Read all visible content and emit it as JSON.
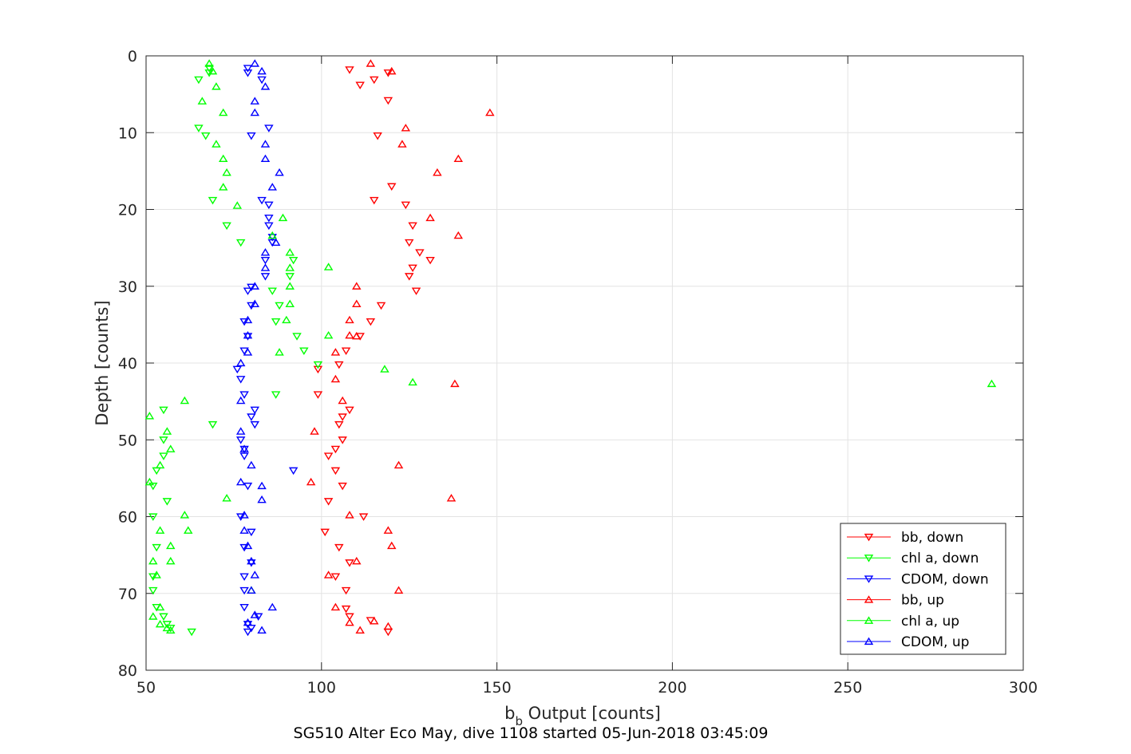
{
  "chart_data": {
    "type": "scatter",
    "title": "",
    "caption": "SG510 Alter Eco May, dive 1108 started 05-Jun-2018 03:45:09",
    "xlabel_main": "b",
    "xlabel_sub": "b",
    "xlabel_rest": " Output [counts]",
    "ylabel": "Depth [counts]",
    "xlim": [
      50,
      300
    ],
    "ylim": [
      0,
      80
    ],
    "y_reversed": true,
    "xticks": [
      50,
      100,
      150,
      200,
      250,
      300
    ],
    "yticks": [
      0,
      10,
      20,
      30,
      40,
      50,
      60,
      70,
      80
    ],
    "grid": true,
    "legend_position": "bottom-right",
    "series": [
      {
        "name": "bb, down",
        "color": "#ff0000",
        "marker": "down",
        "points": [
          [
            108,
            1.8
          ],
          [
            119,
            2.2
          ],
          [
            115,
            3.1
          ],
          [
            111,
            3.8
          ],
          [
            119,
            5.8
          ],
          [
            116,
            10.4
          ],
          [
            115,
            18.8
          ],
          [
            120,
            17
          ],
          [
            124,
            19.4
          ],
          [
            126,
            22.1
          ],
          [
            125,
            24.3
          ],
          [
            128,
            25.6
          ],
          [
            131,
            26.6
          ],
          [
            126,
            27.6
          ],
          [
            125,
            28.7
          ],
          [
            127,
            30.6
          ],
          [
            117,
            32.5
          ],
          [
            114,
            34.6
          ],
          [
            111,
            36.5
          ],
          [
            107,
            38.4
          ],
          [
            105,
            40.2
          ],
          [
            99,
            40.8
          ],
          [
            99,
            44.1
          ],
          [
            108,
            46.1
          ],
          [
            106,
            47
          ],
          [
            105,
            48
          ],
          [
            106,
            50
          ],
          [
            104,
            51.2
          ],
          [
            102,
            52.1
          ],
          [
            104,
            54
          ],
          [
            106,
            56
          ],
          [
            102,
            58
          ],
          [
            112,
            60
          ],
          [
            101,
            62
          ],
          [
            105,
            64
          ],
          [
            108,
            66
          ],
          [
            104,
            67.8
          ],
          [
            107,
            69.6
          ],
          [
            107,
            72
          ],
          [
            108,
            73
          ],
          [
            114,
            73.5
          ],
          [
            119,
            75
          ]
        ]
      },
      {
        "name": "chl a, down",
        "color": "#00ff00",
        "marker": "down",
        "points": [
          [
            68,
            1.6
          ],
          [
            68,
            2.2
          ],
          [
            65,
            3.1
          ],
          [
            65,
            9.4
          ],
          [
            67,
            10.4
          ],
          [
            69,
            18.8
          ],
          [
            73,
            22.1
          ],
          [
            77,
            24.3
          ],
          [
            92,
            26.6
          ],
          [
            91,
            28.7
          ],
          [
            86,
            30.6
          ],
          [
            88,
            32.5
          ],
          [
            87,
            34.6
          ],
          [
            93,
            36.5
          ],
          [
            95,
            38.4
          ],
          [
            99,
            40.2
          ],
          [
            87,
            44.1
          ],
          [
            55,
            46.1
          ],
          [
            69,
            48
          ],
          [
            55,
            50
          ],
          [
            55,
            52.1
          ],
          [
            53,
            54
          ],
          [
            52,
            56
          ],
          [
            56,
            58
          ],
          [
            52,
            60
          ],
          [
            53,
            64
          ],
          [
            52,
            67.8
          ],
          [
            52,
            69.6
          ],
          [
            53,
            71.8
          ],
          [
            55,
            73
          ],
          [
            56,
            74
          ],
          [
            57,
            74.5
          ],
          [
            63,
            75
          ]
        ]
      },
      {
        "name": "CDOM, down",
        "color": "#0000ff",
        "marker": "down",
        "points": [
          [
            79,
            1.6
          ],
          [
            79,
            2.2
          ],
          [
            83,
            3.1
          ],
          [
            85,
            9.4
          ],
          [
            80,
            10.4
          ],
          [
            83,
            18.8
          ],
          [
            85,
            19.4
          ],
          [
            85,
            21.1
          ],
          [
            85,
            22.1
          ],
          [
            86,
            23.6
          ],
          [
            86,
            24.3
          ],
          [
            84,
            26.6
          ],
          [
            84,
            28.7
          ],
          [
            80,
            30.1
          ],
          [
            79,
            30.6
          ],
          [
            80,
            32.5
          ],
          [
            78,
            34.6
          ],
          [
            79,
            36.5
          ],
          [
            78,
            38.4
          ],
          [
            76,
            40.8
          ],
          [
            77,
            42.1
          ],
          [
            78,
            44.1
          ],
          [
            81,
            46.1
          ],
          [
            80,
            47
          ],
          [
            81,
            48
          ],
          [
            77,
            50
          ],
          [
            78,
            51.2
          ],
          [
            78,
            52.1
          ],
          [
            92,
            54
          ],
          [
            79,
            56
          ],
          [
            77,
            60
          ],
          [
            80,
            62
          ],
          [
            78,
            64
          ],
          [
            80,
            66
          ],
          [
            78,
            67.8
          ],
          [
            78,
            69.6
          ],
          [
            78,
            71.8
          ],
          [
            82,
            73
          ],
          [
            79,
            74
          ],
          [
            80,
            74.5
          ],
          [
            79,
            75
          ]
        ]
      },
      {
        "name": "bb, up",
        "color": "#ff0000",
        "marker": "up",
        "points": [
          [
            114,
            1
          ],
          [
            120,
            2
          ],
          [
            148,
            7.4
          ],
          [
            124,
            9.4
          ],
          [
            123,
            11.5
          ],
          [
            139,
            13.4
          ],
          [
            133,
            15.2
          ],
          [
            131,
            21.1
          ],
          [
            139,
            23.4
          ],
          [
            110,
            30
          ],
          [
            110,
            32.3
          ],
          [
            108,
            34.4
          ],
          [
            108,
            36.4
          ],
          [
            110,
            36.5
          ],
          [
            104,
            38.6
          ],
          [
            104,
            42.1
          ],
          [
            138,
            42.7
          ],
          [
            106,
            44.9
          ],
          [
            98,
            48.9
          ],
          [
            122,
            53.3
          ],
          [
            97,
            55.5
          ],
          [
            137,
            57.6
          ],
          [
            108,
            59.8
          ],
          [
            119,
            61.8
          ],
          [
            120,
            63.8
          ],
          [
            110,
            65.8
          ],
          [
            102,
            67.6
          ],
          [
            122,
            69.6
          ],
          [
            104,
            71.8
          ],
          [
            108,
            73.8
          ],
          [
            115,
            73.6
          ],
          [
            111,
            74.8
          ],
          [
            119,
            74.3
          ]
        ]
      },
      {
        "name": "chl a, up",
        "color": "#00ff00",
        "marker": "up",
        "points": [
          [
            68,
            1
          ],
          [
            69,
            2
          ],
          [
            70,
            4
          ],
          [
            66,
            5.9
          ],
          [
            72,
            7.4
          ],
          [
            70,
            11.5
          ],
          [
            72,
            13.4
          ],
          [
            73,
            15.2
          ],
          [
            72,
            17.1
          ],
          [
            76,
            19.5
          ],
          [
            89,
            21.1
          ],
          [
            86,
            23.4
          ],
          [
            91,
            25.6
          ],
          [
            91,
            27.6
          ],
          [
            102,
            27.5
          ],
          [
            91,
            30
          ],
          [
            91,
            32.3
          ],
          [
            90,
            34.4
          ],
          [
            102,
            36.4
          ],
          [
            88,
            38.6
          ],
          [
            118,
            40.8
          ],
          [
            126,
            42.5
          ],
          [
            291,
            42.7
          ],
          [
            61,
            44.9
          ],
          [
            51,
            46.9
          ],
          [
            56,
            48.9
          ],
          [
            57,
            51.2
          ],
          [
            54,
            53.3
          ],
          [
            51,
            55.5
          ],
          [
            73,
            57.6
          ],
          [
            61,
            59.8
          ],
          [
            62,
            61.8
          ],
          [
            54,
            61.8
          ],
          [
            57,
            63.8
          ],
          [
            52,
            65.8
          ],
          [
            57,
            65.8
          ],
          [
            53,
            67.6
          ],
          [
            80,
            69.6
          ],
          [
            54,
            71.8
          ],
          [
            52,
            73
          ],
          [
            54,
            74
          ],
          [
            56,
            74.5
          ],
          [
            57,
            74.8
          ]
        ]
      },
      {
        "name": "CDOM, up",
        "color": "#0000ff",
        "marker": "up",
        "points": [
          [
            81,
            1
          ],
          [
            83,
            2
          ],
          [
            84,
            4
          ],
          [
            81,
            5.9
          ],
          [
            81,
            7.4
          ],
          [
            84,
            11.5
          ],
          [
            84,
            13.4
          ],
          [
            88,
            15.2
          ],
          [
            86,
            17.1
          ],
          [
            87,
            24.3
          ],
          [
            84,
            25.6
          ],
          [
            84,
            27.6
          ],
          [
            81,
            30
          ],
          [
            81,
            32.3
          ],
          [
            79,
            34.4
          ],
          [
            79,
            36.4
          ],
          [
            79,
            38.6
          ],
          [
            77,
            40
          ],
          [
            77,
            44.9
          ],
          [
            77,
            48.9
          ],
          [
            78,
            51.2
          ],
          [
            80,
            53.3
          ],
          [
            77,
            55.5
          ],
          [
            83,
            56
          ],
          [
            83,
            57.8
          ],
          [
            78,
            59.8
          ],
          [
            78,
            61.8
          ],
          [
            79,
            63.8
          ],
          [
            80,
            65.8
          ],
          [
            81,
            67.6
          ],
          [
            80,
            69.6
          ],
          [
            86,
            71.8
          ],
          [
            81,
            72.8
          ],
          [
            79,
            73.8
          ],
          [
            83,
            74.8
          ]
        ]
      }
    ]
  }
}
